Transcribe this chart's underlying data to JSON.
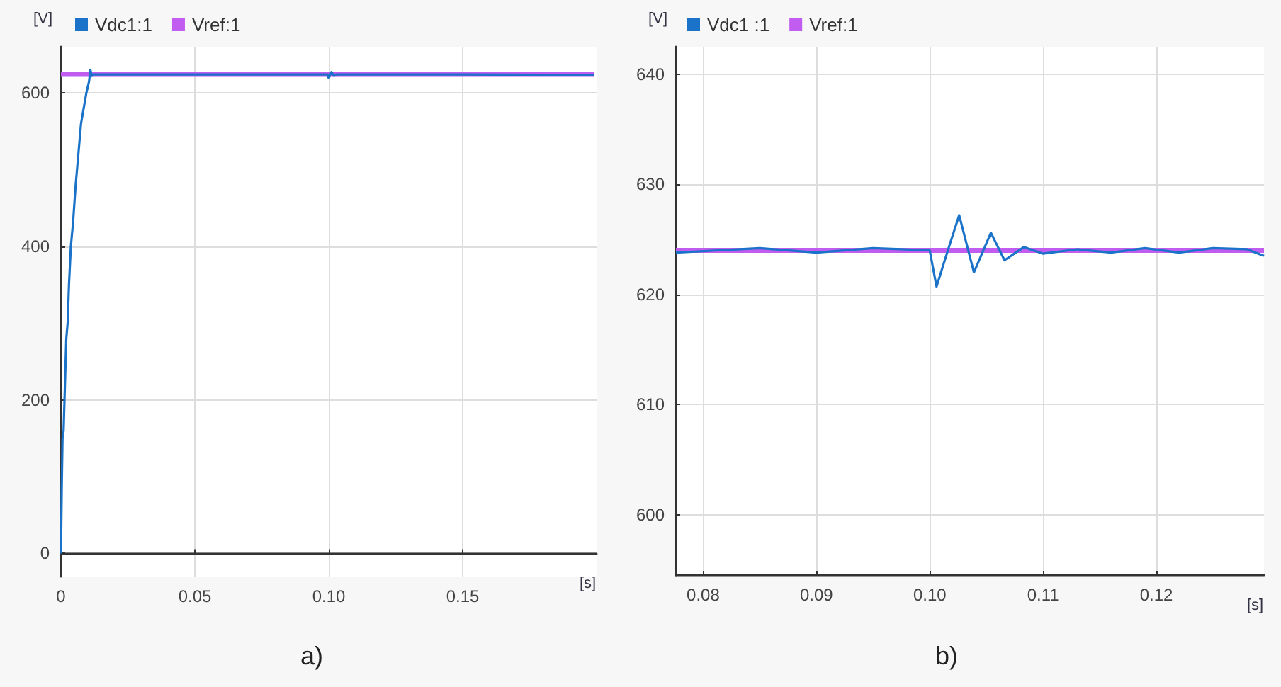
{
  "chart_data": [
    {
      "type": "line",
      "title": "a)",
      "xlabel": "[s]",
      "ylabel": "[V]",
      "xlim": [
        0,
        0.2
      ],
      "ylim": [
        -30,
        660
      ],
      "xticks": [
        0,
        0.05,
        {
          "value": 0.1,
          "label": "0.10"
        },
        0.15
      ],
      "yticks": [
        0,
        200,
        400,
        600
      ],
      "grid": true,
      "legend": "top left",
      "marker": "none",
      "line_style": "solid",
      "series": [
        {
          "name": "Vdc1:1",
          "color": "#1a73c8",
          "x": [
            0,
            0.0003,
            0.0006,
            0.001,
            0.0015,
            0.002,
            0.0025,
            0.003,
            0.0037,
            0.0045,
            0.0055,
            0.0065,
            0.0075,
            0.0085,
            0.0095,
            0.0105,
            0.011,
            0.0115,
            0.012,
            0.02,
            0.05,
            0.0995,
            0.1,
            0.101,
            0.102,
            0.103,
            0.11,
            0.15,
            0.199
          ],
          "values": [
            0,
            85,
            150,
            160,
            220,
            280,
            300,
            350,
            400,
            430,
            480,
            520,
            560,
            580,
            600,
            615,
            630,
            622,
            624,
            624,
            624,
            624,
            619,
            627,
            622,
            624,
            624,
            624,
            623
          ]
        },
        {
          "name": "Vref:1",
          "color": "#c05cf0",
          "x": [
            0,
            0.199
          ],
          "values": [
            624,
            624
          ]
        }
      ]
    },
    {
      "type": "line",
      "title": "b)",
      "xlabel": "[s]",
      "ylabel": "[V]",
      "xlim": [
        0.0776,
        0.1295
      ],
      "ylim": [
        594.5,
        642.5
      ],
      "xticks": [
        0.08,
        0.09,
        {
          "value": 0.1,
          "label": "0.10"
        },
        0.11,
        0.12
      ],
      "yticks": [
        600,
        610,
        620,
        630,
        640
      ],
      "grid": true,
      "legend": "top left",
      "marker": "none",
      "line_style": "solid",
      "series": [
        {
          "name": "Vdc1 :1",
          "color": "#1a73c8",
          "x": [
            0.0776,
            0.085,
            0.09,
            0.095,
            0.1,
            0.1006,
            0.1016,
            0.1026,
            0.1039,
            0.1054,
            0.1066,
            0.1083,
            0.11,
            0.113,
            0.116,
            0.119,
            0.122,
            0.125,
            0.128,
            0.1295
          ],
          "values": [
            623.8,
            624.2,
            623.8,
            624.2,
            624,
            620.7,
            624,
            627.2,
            622,
            625.6,
            623.1,
            624.3,
            623.7,
            624.1,
            623.8,
            624.2,
            623.8,
            624.2,
            624.1,
            623.5
          ]
        },
        {
          "name": "Vref:1",
          "color": "#c05cf0",
          "x": [
            0.0776,
            0.1295
          ],
          "values": [
            624,
            624
          ]
        }
      ]
    }
  ]
}
